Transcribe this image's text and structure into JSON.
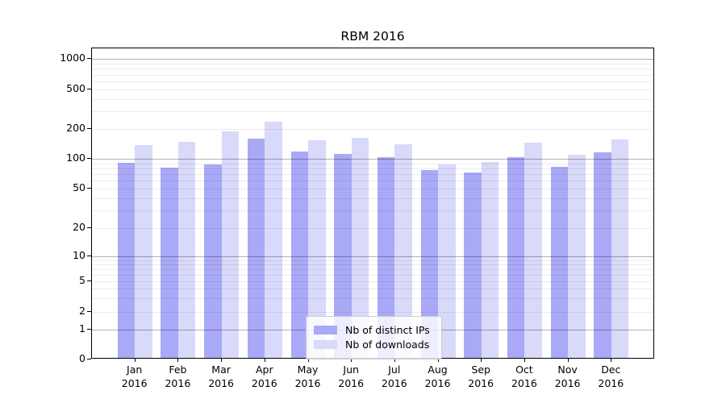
{
  "title": "RBM 2016",
  "legend": {
    "position": "lower center",
    "items": [
      {
        "label": "Nb of distinct IPs",
        "color": "#a9a9f7"
      },
      {
        "label": "Nb of downloads",
        "color": "#d9d9fa"
      }
    ]
  },
  "chart_data": {
    "type": "bar",
    "title": "RBM 2016",
    "categories": [
      "Jan 2016",
      "Feb 2016",
      "Mar 2016",
      "Apr 2016",
      "May 2016",
      "Jun 2016",
      "Jul 2016",
      "Aug 2016",
      "Sep 2016",
      "Oct 2016",
      "Nov 2016",
      "Dec 2016"
    ],
    "series": [
      {
        "name": "Nb of distinct IPs",
        "color": "#a9a9f7",
        "values": [
          88,
          78,
          84,
          155,
          115,
          108,
          100,
          74,
          70,
          100,
          80,
          111
        ]
      },
      {
        "name": "Nb of downloads",
        "color": "#d9d9fa",
        "values": [
          132,
          144,
          184,
          230,
          148,
          158,
          136,
          84,
          89,
          139,
          106,
          150
        ]
      }
    ],
    "xlabel": "",
    "ylabel": "",
    "yscale": "symlog",
    "yticks": [
      0,
      1,
      2,
      5,
      10,
      20,
      50,
      100,
      200,
      500,
      1000
    ],
    "major_grid_values": [
      1,
      10,
      100,
      1000
    ],
    "minor_grid_values": [
      2,
      3,
      4,
      5,
      6,
      7,
      8,
      9,
      20,
      30,
      40,
      50,
      60,
      70,
      80,
      90,
      200,
      300,
      400,
      500,
      600,
      700,
      800,
      900
    ],
    "ylim": [
      0,
      1300
    ],
    "grid": "both",
    "legend_position": "lower center"
  }
}
